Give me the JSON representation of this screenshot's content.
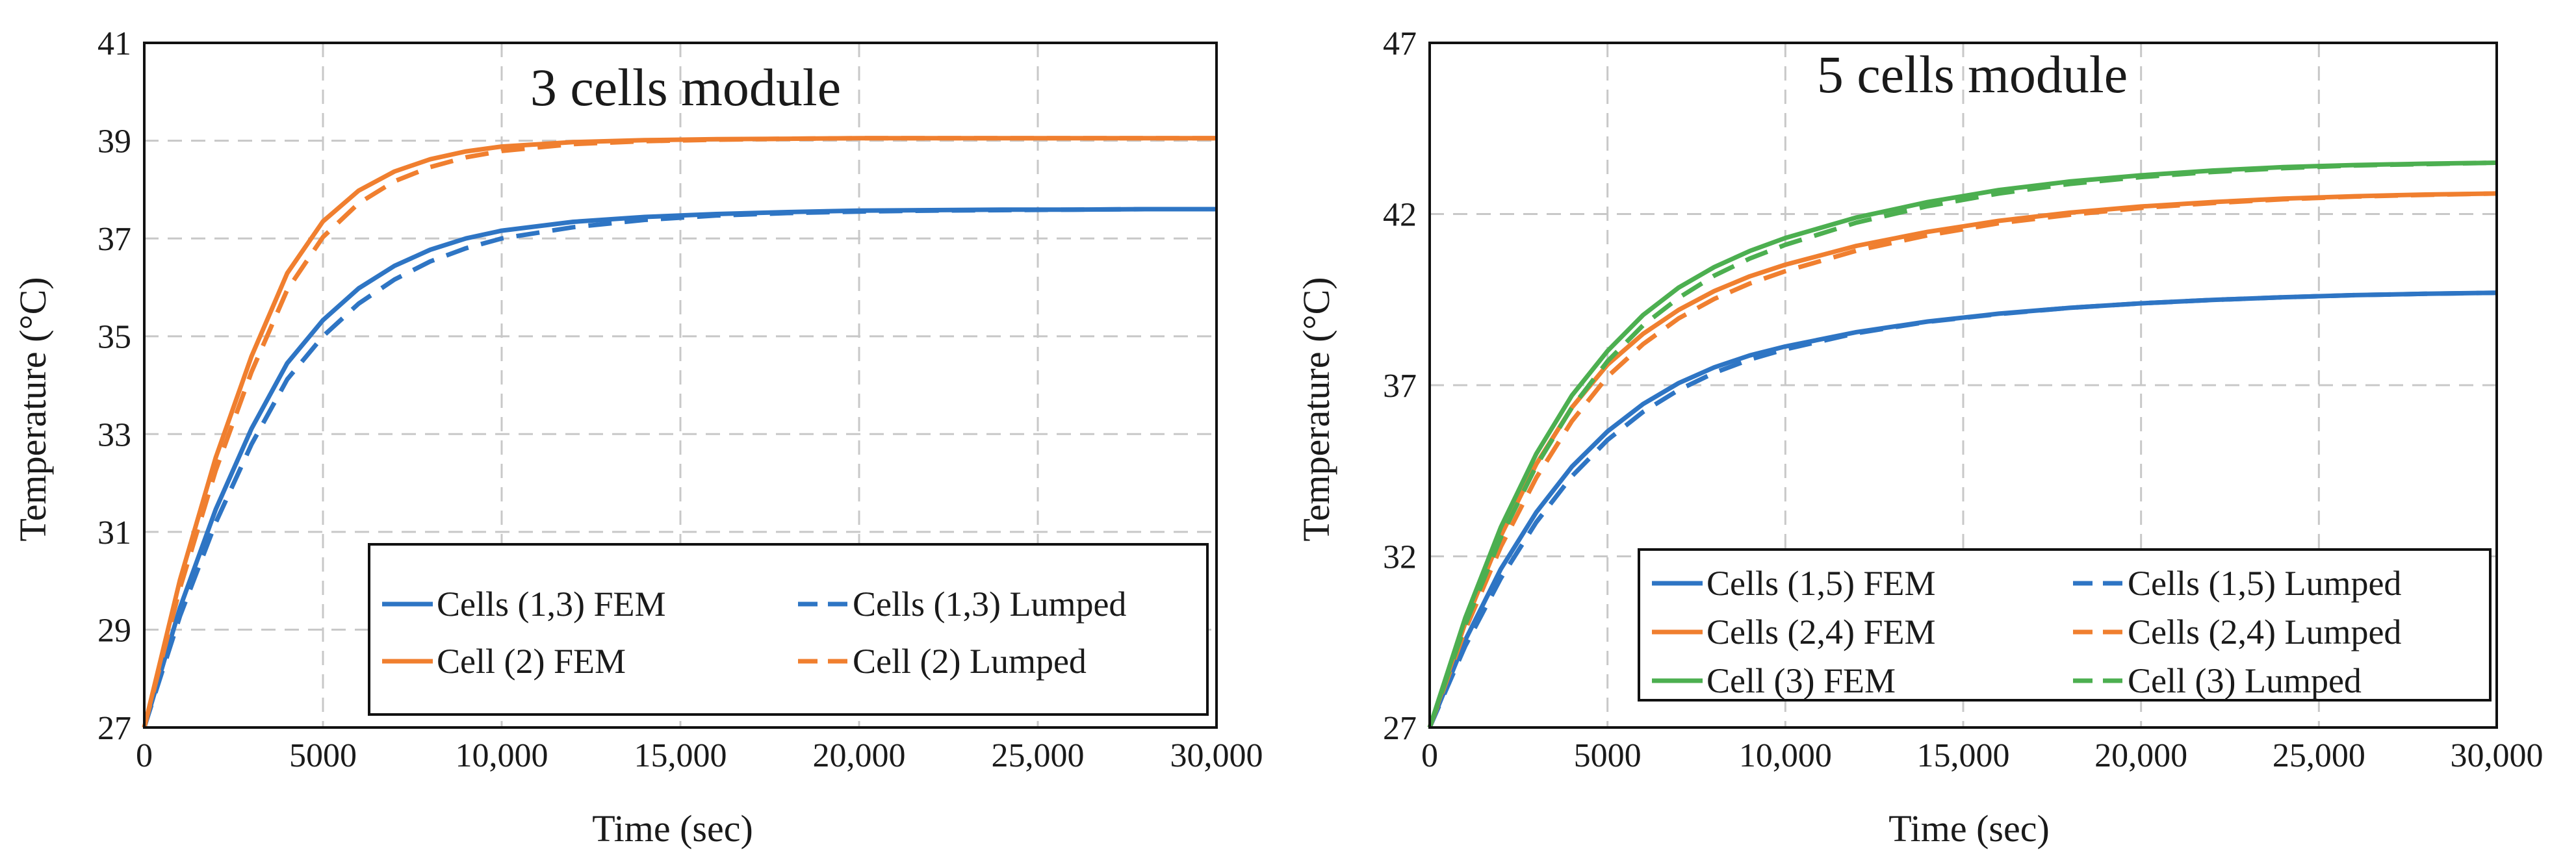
{
  "chart_data": [
    {
      "type": "line",
      "title": "3 cells module",
      "xlabel": "Time (sec)",
      "ylabel": "Temperature (°C)",
      "xlim": [
        0,
        30000
      ],
      "ylim": [
        27,
        41
      ],
      "x_ticks": [
        0,
        5000,
        10000,
        15000,
        20000,
        25000,
        30000
      ],
      "x_tick_labels": [
        "0",
        "5000",
        "10,000",
        "15,000",
        "20,000",
        "25,000",
        "30,000"
      ],
      "y_ticks": [
        27,
        29,
        31,
        33,
        35,
        37,
        39,
        41
      ],
      "y_tick_labels": [
        "27",
        "29",
        "31",
        "33",
        "35",
        "37",
        "39",
        "41"
      ],
      "grid": true,
      "legend_position": "bottom-right",
      "legend_columns": 2,
      "x": [
        0,
        1000,
        2000,
        3000,
        4000,
        5000,
        6000,
        7000,
        8000,
        9000,
        10000,
        12000,
        14000,
        16000,
        18000,
        20000,
        22000,
        24000,
        26000,
        28000,
        30000
      ],
      "series": [
        {
          "name": "Cells (1,3) FEM",
          "color": "#2E75C4",
          "dash": "solid",
          "values": [
            27.0,
            29.45,
            31.46,
            33.11,
            34.45,
            35.33,
            35.98,
            36.44,
            36.77,
            37.0,
            37.16,
            37.34,
            37.44,
            37.5,
            37.54,
            37.57,
            37.58,
            37.59,
            37.59,
            37.6,
            37.6
          ]
        },
        {
          "name": "Cells (1,3) Lumped",
          "color": "#2E75C4",
          "dash": "dashed",
          "values": [
            27.0,
            29.28,
            31.19,
            32.79,
            34.12,
            35.0,
            35.67,
            36.16,
            36.53,
            36.8,
            37.0,
            37.23,
            37.38,
            37.47,
            37.52,
            37.55,
            37.57,
            37.58,
            37.59,
            37.6,
            37.6
          ]
        },
        {
          "name": "Cell (2) FEM",
          "color": "#F07F2F",
          "dash": "solid",
          "values": [
            27.0,
            30.02,
            32.52,
            34.59,
            36.29,
            37.35,
            37.98,
            38.37,
            38.62,
            38.78,
            38.88,
            38.97,
            39.01,
            39.03,
            39.04,
            39.05,
            39.05,
            39.05,
            39.05,
            39.05,
            39.05
          ]
        },
        {
          "name": "Cell (2) Lumped",
          "color": "#F07F2F",
          "dash": "dashed",
          "values": [
            27.0,
            29.85,
            32.26,
            34.27,
            35.95,
            37.03,
            37.72,
            38.17,
            38.46,
            38.66,
            38.79,
            38.93,
            38.99,
            39.02,
            39.04,
            39.05,
            39.05,
            39.05,
            39.05,
            39.05,
            39.05
          ]
        }
      ]
    },
    {
      "type": "line",
      "title": "5 cells module",
      "xlabel": "Time (sec)",
      "ylabel": "Temperature (°C)",
      "xlim": [
        0,
        30000
      ],
      "ylim": [
        27,
        47
      ],
      "x_ticks": [
        0,
        5000,
        10000,
        15000,
        20000,
        25000,
        30000
      ],
      "x_tick_labels": [
        "0",
        "5000",
        "10,000",
        "15,000",
        "20,000",
        "25,000",
        "30,000"
      ],
      "y_ticks": [
        27,
        32,
        37,
        42,
        47
      ],
      "y_tick_labels": [
        "27",
        "32",
        "37",
        "42",
        "47"
      ],
      "grid": true,
      "legend_position": "bottom-right",
      "legend_columns": 2,
      "x": [
        0,
        1000,
        2000,
        3000,
        4000,
        5000,
        6000,
        7000,
        8000,
        9000,
        10000,
        12000,
        14000,
        16000,
        18000,
        20000,
        22000,
        24000,
        26000,
        28000,
        30000
      ],
      "series": [
        {
          "name": "Cells (1,5) FEM",
          "color": "#2E75C4",
          "dash": "solid",
          "values": [
            27.0,
            29.55,
            31.63,
            33.29,
            34.62,
            35.65,
            36.45,
            37.06,
            37.52,
            37.87,
            38.13,
            38.55,
            38.86,
            39.09,
            39.26,
            39.39,
            39.49,
            39.57,
            39.63,
            39.67,
            39.7
          ]
        },
        {
          "name": "Cells (1,5) Lumped",
          "color": "#2E75C4",
          "dash": "dashed",
          "values": [
            27.0,
            29.38,
            31.36,
            33.0,
            34.34,
            35.4,
            36.22,
            36.86,
            37.36,
            37.75,
            38.05,
            38.52,
            38.85,
            39.08,
            39.26,
            39.39,
            39.49,
            39.57,
            39.63,
            39.67,
            39.7
          ]
        },
        {
          "name": "Cells (2,4) FEM",
          "color": "#F07F2F",
          "dash": "solid",
          "values": [
            27.0,
            30.05,
            32.6,
            34.7,
            36.35,
            37.6,
            38.5,
            39.2,
            39.75,
            40.18,
            40.52,
            41.07,
            41.48,
            41.8,
            42.04,
            42.22,
            42.35,
            42.45,
            42.52,
            42.57,
            42.6
          ]
        },
        {
          "name": "Cells (2,4) Lumped",
          "color": "#F07F2F",
          "dash": "dashed",
          "values": [
            27.0,
            29.85,
            32.28,
            34.3,
            35.95,
            37.25,
            38.2,
            38.95,
            39.52,
            39.97,
            40.33,
            40.93,
            41.38,
            41.73,
            41.98,
            42.18,
            42.32,
            42.43,
            42.51,
            42.56,
            42.6
          ]
        },
        {
          "name": "Cell (3) FEM",
          "color": "#4CAF50",
          "dash": "solid",
          "values": [
            27.0,
            30.2,
            32.85,
            35.0,
            36.7,
            38.0,
            39.05,
            39.85,
            40.45,
            40.92,
            41.3,
            41.9,
            42.35,
            42.7,
            42.95,
            43.13,
            43.27,
            43.37,
            43.43,
            43.47,
            43.5
          ]
        },
        {
          "name": "Cell (3) Lumped",
          "color": "#4CAF50",
          "dash": "dashed",
          "values": [
            27.0,
            30.0,
            32.55,
            34.65,
            36.35,
            37.7,
            38.75,
            39.55,
            40.2,
            40.7,
            41.1,
            41.75,
            42.23,
            42.6,
            42.88,
            43.08,
            43.23,
            43.34,
            43.42,
            43.46,
            43.5
          ]
        }
      ]
    }
  ]
}
